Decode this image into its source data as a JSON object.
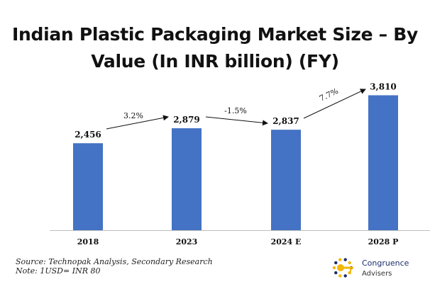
{
  "title": {
    "line1": "Indian Plastic Packaging Market Size – By",
    "line2": "Value (In INR billion) (FY)"
  },
  "chart_data": {
    "type": "bar",
    "categories": [
      "2018",
      "2023",
      "2024 E",
      "2028 P"
    ],
    "values": [
      2456,
      2879,
      2837,
      3810
    ],
    "value_labels": [
      "2,456",
      "2,879",
      "2,837",
      "3,810"
    ],
    "ylim": [
      0,
      4200
    ],
    "bar_color": "#4472c4",
    "grid": false,
    "growth_annotations": [
      {
        "from": 0,
        "to": 1,
        "label": "3.2%"
      },
      {
        "from": 1,
        "to": 2,
        "label": "-1.5%"
      },
      {
        "from": 2,
        "to": 3,
        "label": "7.7%"
      }
    ]
  },
  "footer": {
    "source": "Source: Technopak Analysis, Secondary Research",
    "note": "Note: 1USD= INR 80"
  },
  "logo": {
    "line1": "Congruence",
    "line2": "Advisers",
    "primary_color": "#1c2b6b",
    "accent_color": "#f2b705"
  }
}
